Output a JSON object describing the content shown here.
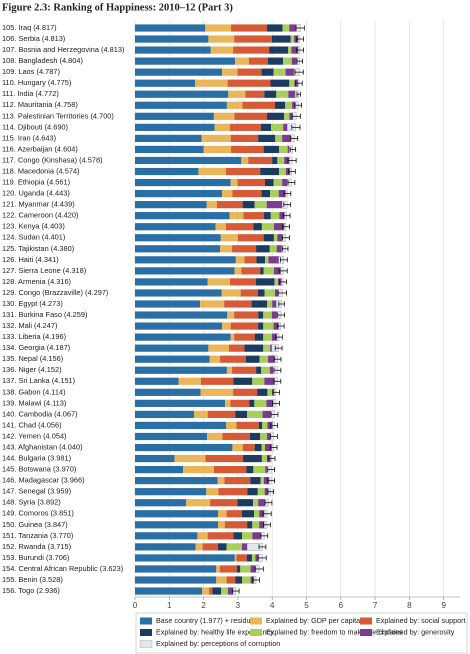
{
  "chart_data": {
    "type": "stacked-barh",
    "title": "Figure 2.3: Ranking of Happiness: 2010–12 (Part 3)",
    "categories": [
      "105. Iraq (4.817)",
      "106. Serbia (4.813)",
      "107. Bosnia and Herzegovina (4.813)",
      "108. Bangladesh (4.804)",
      "109. Laos (4.787)",
      "110. Hungary (4.775)",
      "111. India (4.772)",
      "112. Mauritania (4.758)",
      "113. Palestinian Territories (4.700)",
      "114. Djibouti (4.690)",
      "115. Iran (4.643)",
      "116. Azerbaijan (4.604)",
      "117. Congo (Kinshasa) (4.578)",
      "118. Macedonia (4.574)",
      "119. Ethiopia (4.561)",
      "120. Uganda (4.443)",
      "121. Myanmar (4.439)",
      "122. Cameroon (4.420)",
      "123. Kenya (4.403)",
      "124. Sudan (4.401)",
      "125. Tajikistan (4.380)",
      "126. Haiti (4.341)",
      "127. Sierra Leone (4.318)",
      "128. Armenia (4.316)",
      "129. Congo (Brazzaville) (4.297)",
      "130. Egypt (4.273)",
      "131. Burkina Faso (4.259)",
      "132. Mali (4.247)",
      "133. Liberia (4.196)",
      "134. Georgia (4.187)",
      "135. Nepal (4.156)",
      "136. Niger (4.152)",
      "137. Sri Lanka (4.151)",
      "138. Gabon (4.114)",
      "139. Malawi (4.113)",
      "140. Cambodia (4.067)",
      "141. Chad (4.056)",
      "142. Yemen (4.054)",
      "143. Afghanistan (4.040)",
      "144. Bulgaria (3.981)",
      "145. Botswana (3.970)",
      "146. Madagascar (3.966)",
      "147. Senegal (3.959)",
      "148. Syria (3.892)",
      "149. Comoros (3.851)",
      "150. Guinea (3.847)",
      "151. Tanzania (3.770)",
      "152. Rwanda (3.715)",
      "153. Burundi (3.706)",
      "154. Central African Republic (3.623)",
      "155. Benin (3.528)",
      "156. Togo (2.936)"
    ],
    "totals": [
      4.817,
      4.813,
      4.813,
      4.804,
      4.787,
      4.775,
      4.772,
      4.758,
      4.7,
      4.69,
      4.643,
      4.604,
      4.578,
      4.574,
      4.561,
      4.443,
      4.439,
      4.42,
      4.403,
      4.401,
      4.38,
      4.341,
      4.318,
      4.316,
      4.297,
      4.273,
      4.259,
      4.247,
      4.196,
      4.187,
      4.156,
      4.152,
      4.151,
      4.114,
      4.113,
      4.067,
      4.056,
      4.054,
      4.04,
      3.981,
      3.97,
      3.966,
      3.959,
      3.892,
      3.851,
      3.847,
      3.77,
      3.715,
      3.706,
      3.623,
      3.528,
      2.936
    ],
    "errors": [
      0.12,
      0.1,
      0.1,
      0.08,
      0.12,
      0.1,
      0.05,
      0.1,
      0.12,
      0.12,
      0.1,
      0.08,
      0.12,
      0.1,
      0.1,
      0.1,
      0.1,
      0.1,
      0.1,
      0.1,
      0.08,
      0.1,
      0.12,
      0.1,
      0.12,
      0.08,
      0.1,
      0.1,
      0.1,
      0.1,
      0.1,
      0.1,
      0.1,
      0.1,
      0.1,
      0.1,
      0.1,
      0.1,
      0.1,
      0.1,
      0.1,
      0.1,
      0.08,
      0.1,
      0.12,
      0.1,
      0.1,
      0.1,
      0.12,
      0.12,
      0.1,
      0.1
    ],
    "series": [
      {
        "name": "Base country (1.977) + residual",
        "color": "#2a6ea6",
        "values": [
          2.05,
          2.14,
          2.21,
          2.92,
          2.54,
          1.75,
          2.72,
          2.68,
          2.3,
          2.32,
          1.94,
          2.0,
          3.1,
          1.85,
          2.79,
          2.54,
          2.09,
          2.76,
          2.35,
          2.5,
          2.48,
          2.94,
          2.9,
          2.12,
          2.53,
          1.9,
          2.69,
          2.54,
          2.79,
          2.14,
          2.18,
          2.68,
          1.27,
          1.91,
          2.63,
          1.72,
          2.66,
          2.1,
          2.84,
          1.15,
          1.4,
          2.41,
          2.08,
          1.49,
          2.42,
          2.42,
          1.82,
          1.77,
          2.91,
          2.37,
          2.37,
          1.96
        ]
      },
      {
        "name": "Explained by: GDP per capita",
        "color": "#e9b65a",
        "values": [
          0.75,
          0.75,
          0.65,
          0.4,
          0.45,
          0.95,
          0.5,
          0.45,
          0.6,
          0.45,
          0.85,
          0.8,
          0.2,
          0.8,
          0.2,
          0.3,
          0.3,
          0.4,
          0.3,
          0.5,
          0.35,
          0.25,
          0.2,
          0.65,
          0.55,
          0.7,
          0.2,
          0.25,
          0.1,
          0.6,
          0.3,
          0.15,
          0.65,
          0.95,
          0.15,
          0.4,
          0.3,
          0.45,
          0.3,
          0.9,
          0.9,
          0.2,
          0.35,
          0.7,
          0.25,
          0.2,
          0.3,
          0.2,
          0.05,
          0.1,
          0.3,
          0.2
        ]
      },
      {
        "name": "Explained by: social support",
        "color": "#d65a36",
        "values": [
          1.05,
          1.1,
          1.05,
          0.55,
          0.7,
          1.25,
          0.55,
          0.95,
          0.95,
          0.9,
          0.8,
          0.95,
          0.7,
          1.0,
          0.8,
          0.85,
          0.75,
          0.6,
          0.8,
          0.75,
          0.7,
          0.35,
          0.55,
          0.75,
          0.5,
          0.8,
          0.7,
          0.8,
          0.6,
          0.45,
          0.75,
          0.7,
          0.95,
          0.7,
          0.55,
          0.8,
          0.65,
          0.8,
          0.35,
          1.1,
          0.95,
          0.75,
          0.85,
          0.8,
          0.45,
          0.65,
          0.75,
          0.45,
          0.3,
          0.5,
          0.25,
          0.1
        ]
      },
      {
        "name": "Explained by: healthy life expectancy",
        "color": "#1b3b60",
        "values": [
          0.45,
          0.55,
          0.55,
          0.45,
          0.35,
          0.55,
          0.35,
          0.3,
          0.5,
          0.3,
          0.5,
          0.45,
          0.15,
          0.55,
          0.25,
          0.25,
          0.35,
          0.2,
          0.25,
          0.3,
          0.4,
          0.25,
          0.1,
          0.55,
          0.2,
          0.45,
          0.15,
          0.15,
          0.25,
          0.55,
          0.4,
          0.15,
          0.55,
          0.3,
          0.15,
          0.35,
          0.1,
          0.3,
          0.2,
          0.55,
          0.2,
          0.3,
          0.3,
          0.45,
          0.35,
          0.15,
          0.25,
          0.25,
          0.15,
          0.1,
          0.2,
          0.25
        ]
      },
      {
        "name": "Explained by: freedom to make life choices",
        "color": "#a7cf5b",
        "values": [
          0.2,
          0.1,
          0.1,
          0.25,
          0.35,
          0.15,
          0.35,
          0.2,
          0.15,
          0.35,
          0.2,
          0.25,
          0.2,
          0.2,
          0.25,
          0.25,
          0.35,
          0.25,
          0.35,
          0.1,
          0.2,
          0.1,
          0.3,
          0.1,
          0.3,
          0.15,
          0.25,
          0.3,
          0.25,
          0.2,
          0.25,
          0.25,
          0.35,
          0.15,
          0.35,
          0.45,
          0.15,
          0.2,
          0.1,
          0.15,
          0.35,
          0.1,
          0.2,
          0.15,
          0.15,
          0.2,
          0.3,
          0.45,
          0.1,
          0.3,
          0.25,
          0.2
        ]
      },
      {
        "name": "Explained by: generosity",
        "color": "#7b3b8e",
        "values": [
          0.2,
          0.12,
          0.2,
          0.15,
          0.25,
          0.1,
          0.2,
          0.1,
          0.1,
          0.12,
          0.25,
          0.05,
          0.15,
          0.12,
          0.15,
          0.2,
          0.45,
          0.15,
          0.3,
          0.15,
          0.15,
          0.3,
          0.2,
          0.1,
          0.1,
          0.12,
          0.15,
          0.15,
          0.15,
          0.05,
          0.2,
          0.1,
          0.3,
          0.05,
          0.2,
          0.25,
          0.15,
          0.1,
          0.2,
          0.1,
          0.05,
          0.15,
          0.1,
          0.2,
          0.15,
          0.15,
          0.25,
          0.15,
          0.1,
          0.15,
          0.1,
          0.15
        ]
      },
      {
        "name": "Explained by: perceptions of corruption",
        "color": "#e3e8ee",
        "values": [
          0.12,
          0.05,
          0.05,
          0.08,
          0.15,
          0.03,
          0.1,
          0.08,
          0.1,
          0.25,
          0.1,
          0.1,
          0.08,
          0.05,
          0.12,
          0.05,
          0.15,
          0.06,
          0.05,
          0.1,
          0.1,
          0.15,
          0.07,
          0.05,
          0.12,
          0.15,
          0.12,
          0.06,
          0.06,
          0.2,
          0.08,
          0.12,
          0.08,
          0.05,
          0.08,
          0.1,
          0.05,
          0.1,
          0.05,
          0.03,
          0.12,
          0.06,
          0.08,
          0.1,
          0.08,
          0.08,
          0.1,
          0.45,
          0.1,
          0.1,
          0.06,
          0.08
        ]
      }
    ],
    "xlim": [
      0,
      9
    ],
    "xticks": [
      0,
      1,
      2,
      3,
      4,
      5,
      6,
      7,
      8,
      9
    ],
    "grid": true
  }
}
